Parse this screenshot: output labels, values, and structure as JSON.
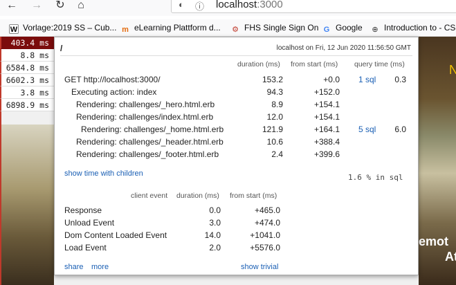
{
  "browser": {
    "url_host": "localhost",
    "url_port": ":3000",
    "bookmarks": [
      {
        "label": "Vorlage:2019 SS – Cub...",
        "icon": "W"
      },
      {
        "label": "eLearning Plattform d...",
        "icon": "m"
      },
      {
        "label": "FHS Single Sign On",
        "icon": "⚙"
      },
      {
        "label": "Google",
        "icon": "G"
      },
      {
        "label": "Introduction to - CS",
        "icon": "⊕"
      }
    ]
  },
  "badges": [
    "403.4 ms",
    "8.8 ms",
    "6584.8 ms",
    "6602.3 ms",
    "3.8 ms",
    "6898.9 ms"
  ],
  "popup": {
    "path": "/",
    "meta": "localhost on Fri, 12 Jun 2020 11:56:50 GMT",
    "headers": {
      "duration": "duration (ms)",
      "from_start": "from start (ms)",
      "query_time": "query time (ms)"
    },
    "rows": [
      {
        "name": "GET http://localhost:3000/",
        "duration": "153.2",
        "from_start": "+0.0",
        "sql": "1 sql",
        "query_time": "0.3"
      },
      {
        "name": "Executing action: index",
        "duration": "94.3",
        "from_start": "+152.0",
        "sql": "",
        "query_time": ""
      },
      {
        "name": "Rendering: challenges/_hero.html.erb",
        "duration": "8.9",
        "from_start": "+154.1",
        "sql": "",
        "query_time": ""
      },
      {
        "name": "Rendering: challenges/index.html.erb",
        "duration": "12.0",
        "from_start": "+154.1",
        "sql": "",
        "query_time": ""
      },
      {
        "name": "Rendering: challenges/_home.html.erb",
        "duration": "121.9",
        "from_start": "+164.1",
        "sql": "5 sql",
        "query_time": "6.0"
      },
      {
        "name": "Rendering: challenges/_header.html.erb",
        "duration": "10.6",
        "from_start": "+388.4",
        "sql": "",
        "query_time": ""
      },
      {
        "name": "Rendering: challenges/_footer.html.erb",
        "duration": "2.4",
        "from_start": "+399.6",
        "sql": "",
        "query_time": ""
      }
    ],
    "show_children": "show time with children",
    "sql_percent": "1.6 % in sql",
    "client_headers": {
      "event": "client event",
      "duration": "duration (ms)",
      "from_start": "from start (ms)"
    },
    "client_rows": [
      {
        "name": "Response",
        "duration": "0.0",
        "from_start": "+465.0"
      },
      {
        "name": "Unload Event",
        "duration": "3.0",
        "from_start": "+474.0"
      },
      {
        "name": "Dom Content Loaded Event",
        "duration": "14.0",
        "from_start": "+1041.0"
      },
      {
        "name": "Load Event",
        "duration": "2.0",
        "from_start": "+5576.0"
      }
    ],
    "share": "share",
    "more": "more",
    "show_trivial": "show trivial"
  },
  "hero": {
    "text_yellow": "N",
    "text_1": "emot",
    "text_2": "At"
  }
}
